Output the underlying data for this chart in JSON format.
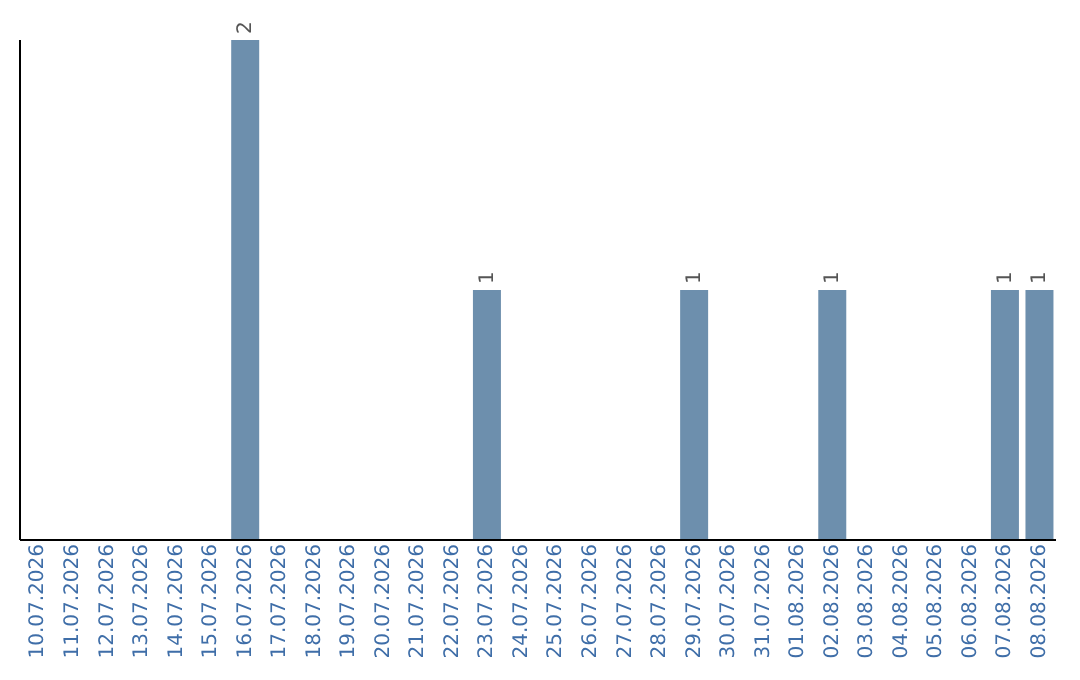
{
  "chart_data": {
    "type": "bar",
    "categories": [
      "10.07.2026",
      "11.07.2026",
      "12.07.2026",
      "13.07.2026",
      "14.07.2026",
      "15.07.2026",
      "16.07.2026",
      "17.07.2026",
      "18.07.2026",
      "19.07.2026",
      "20.07.2026",
      "21.07.2026",
      "22.07.2026",
      "23.07.2026",
      "24.07.2026",
      "25.07.2026",
      "26.07.2026",
      "27.07.2026",
      "28.07.2026",
      "29.07.2026",
      "30.07.2026",
      "31.07.2026",
      "01.08.2026",
      "02.08.2026",
      "03.08.2026",
      "04.08.2026",
      "05.08.2026",
      "06.08.2026",
      "07.08.2026",
      "08.08.2026"
    ],
    "values": [
      0,
      0,
      0,
      0,
      0,
      0,
      2,
      0,
      0,
      0,
      0,
      0,
      0,
      1,
      0,
      0,
      0,
      0,
      0,
      1,
      0,
      0,
      0,
      1,
      0,
      0,
      0,
      0,
      1,
      1
    ],
    "value_labels": [
      null,
      null,
      null,
      null,
      null,
      null,
      "2",
      null,
      null,
      null,
      null,
      null,
      null,
      "1",
      null,
      null,
      null,
      null,
      null,
      "1",
      null,
      null,
      null,
      "1",
      null,
      null,
      null,
      null,
      "1",
      "1"
    ],
    "color": "#6d8fad",
    "tick_labels": "x",
    "grid": false,
    "legend": false
  }
}
